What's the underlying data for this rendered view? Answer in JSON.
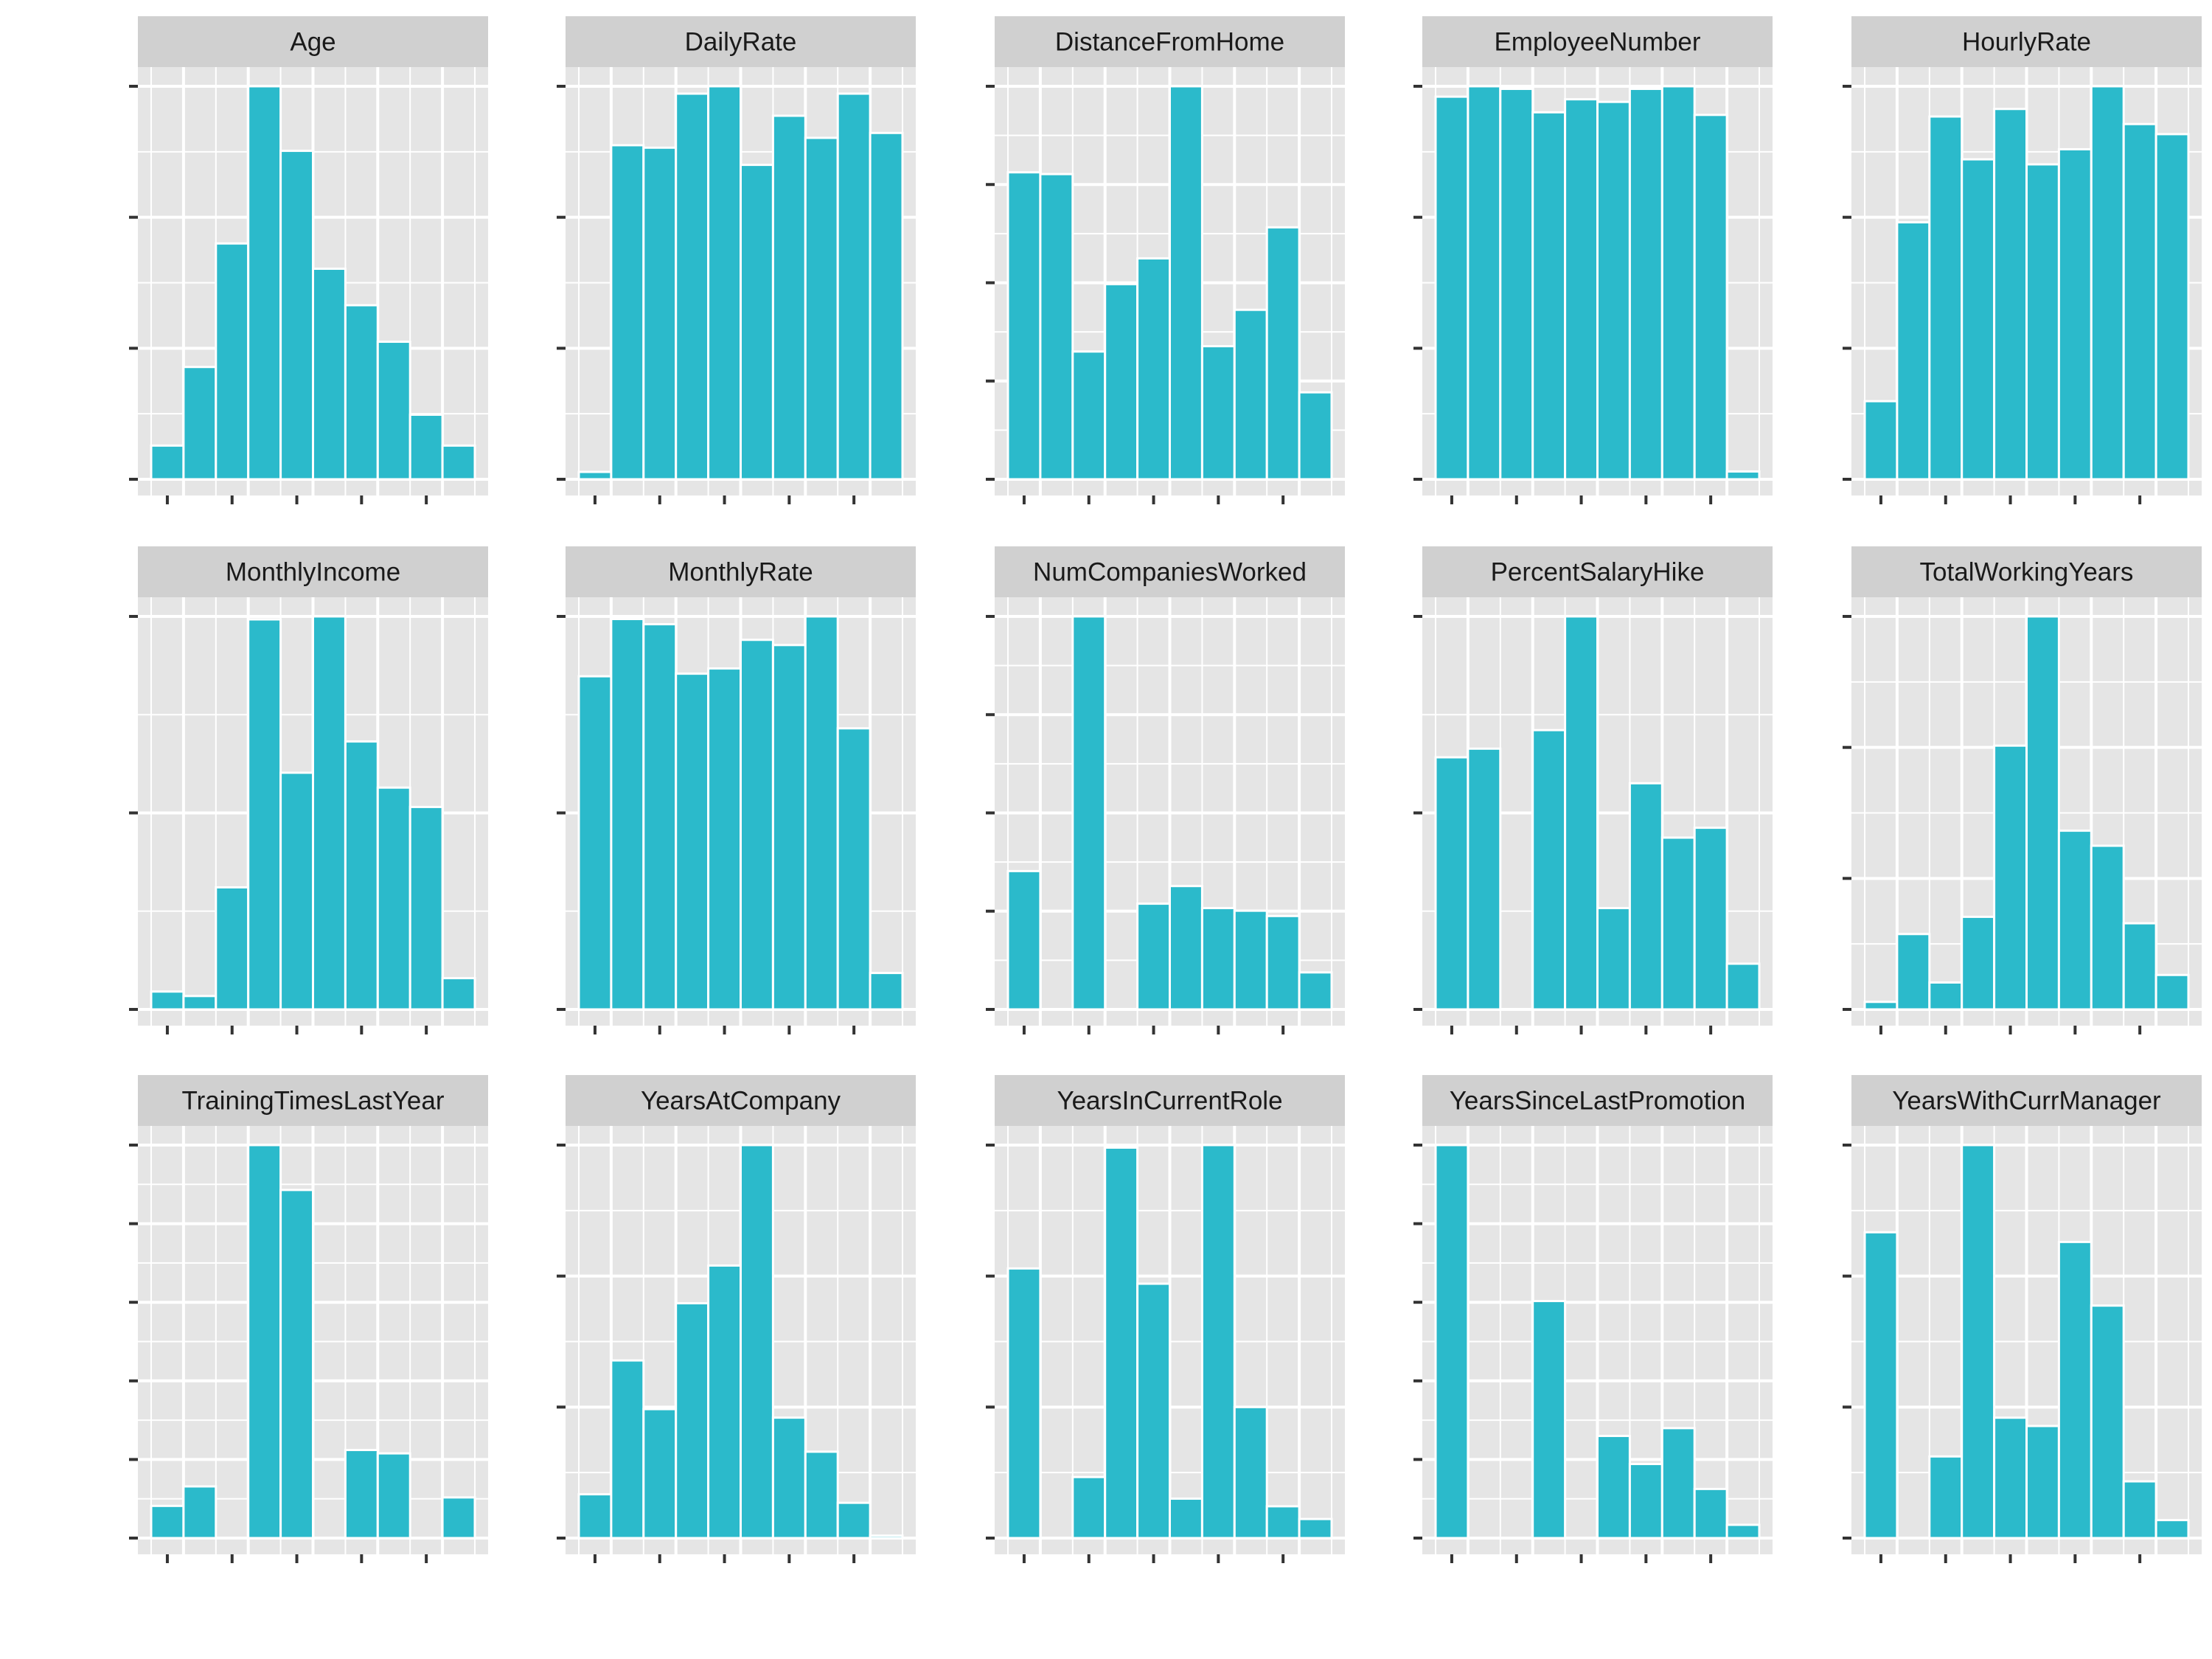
{
  "colors": {
    "bar_fill": "#2bbacb",
    "bar_outline": "#ffffff",
    "panel_bg": "#e5e5e5",
    "grid": "#ffffff",
    "strip_bg": "#d0d0d0",
    "axis_ticks": "#333333",
    "strip_text": "#1a1a1a"
  },
  "chart_data": [
    {
      "type": "bar",
      "title": "Age",
      "grid": true,
      "values": [
        12,
        40,
        84,
        140,
        117,
        75,
        62,
        49,
        23,
        12
      ]
    },
    {
      "type": "bar",
      "title": "DailyRate",
      "grid": true,
      "values": [
        3,
        136,
        135,
        157,
        160,
        128,
        148,
        139,
        157,
        141
      ]
    },
    {
      "type": "bar",
      "title": "DistanceFromHome",
      "grid": true,
      "values": [
        346,
        344,
        144,
        220,
        249,
        443,
        150,
        191,
        284,
        98
      ]
    },
    {
      "type": "bar",
      "title": "EmployeeNumber",
      "grid": true,
      "values": [
        147,
        151,
        150,
        141,
        146,
        145,
        150,
        151,
        140,
        3
      ]
    },
    {
      "type": "bar",
      "title": "HourlyRate",
      "grid": true,
      "values": [
        31,
        102,
        144,
        127,
        147,
        125,
        131,
        156,
        141,
        137
      ]
    },
    {
      "type": "bar",
      "title": "MonthlyIncome",
      "grid": true,
      "values": [
        12,
        9,
        82,
        262,
        159,
        264,
        180,
        149,
        136,
        21
      ]
    },
    {
      "type": "bar",
      "title": "MonthlyRate",
      "grid": true,
      "values": [
        128,
        150,
        148,
        129,
        131,
        142,
        140,
        151,
        108,
        14
      ]
    },
    {
      "type": "bar",
      "title": "NumCompaniesWorked",
      "grid": true,
      "values": [
        157,
        0,
        446,
        0,
        120,
        140,
        115,
        112,
        106,
        42
      ]
    },
    {
      "type": "bar",
      "title": "PercentSalaryHike",
      "grid": true,
      "values": [
        204,
        211,
        0,
        226,
        318,
        82,
        183,
        139,
        147,
        37
      ]
    },
    {
      "type": "bar",
      "title": "TotalWorkingYears",
      "grid": true,
      "values": [
        7,
        70,
        25,
        86,
        245,
        365,
        166,
        152,
        80,
        32
      ]
    },
    {
      "type": "bar",
      "title": "TrainingTimesLastYear",
      "grid": true,
      "values": [
        38,
        61,
        0,
        464,
        411,
        0,
        104,
        100,
        0,
        48
      ]
    },
    {
      "type": "bar",
      "title": "YearsAtCompany",
      "grid": true,
      "values": [
        36,
        146,
        106,
        193,
        224,
        323,
        99,
        71,
        29,
        2
      ]
    },
    {
      "type": "bar",
      "title": "YearsInCurrentRole",
      "grid": true,
      "values": [
        212,
        0,
        48,
        307,
        200,
        31,
        309,
        103,
        25,
        15
      ]
    },
    {
      "type": "bar",
      "title": "YearsSinceLastPromotion",
      "grid": true,
      "values": [
        504,
        0,
        0,
        304,
        0,
        131,
        95,
        141,
        63,
        17
      ]
    },
    {
      "type": "bar",
      "title": "YearsWithCurrManager",
      "grid": true,
      "values": [
        221,
        0,
        59,
        284,
        87,
        81,
        214,
        168,
        41,
        13
      ]
    }
  ]
}
